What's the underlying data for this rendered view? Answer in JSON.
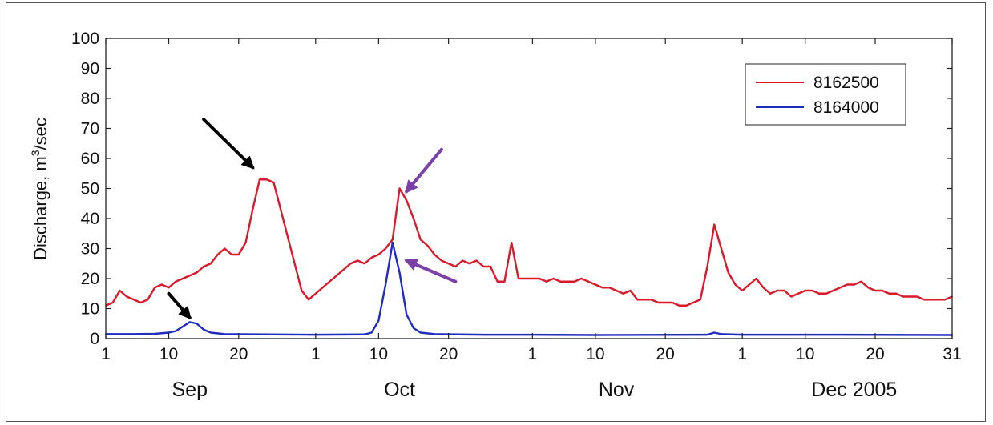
{
  "chart_data": {
    "type": "line",
    "title": "",
    "xlabel": "",
    "ylabel_parts": [
      "Discharge, m",
      "3",
      "/sec"
    ],
    "ylim": [
      0,
      100
    ],
    "yticks": [
      0,
      10,
      20,
      30,
      40,
      50,
      60,
      70,
      80,
      90,
      100
    ],
    "xlim": [
      "2005-09-01",
      "2005-12-31"
    ],
    "x_ticks": [
      {
        "date": "2005-09-01",
        "label": "1"
      },
      {
        "date": "2005-09-10",
        "label": "10"
      },
      {
        "date": "2005-09-20",
        "label": "20"
      },
      {
        "date": "2005-10-01",
        "label": "1"
      },
      {
        "date": "2005-10-10",
        "label": "10"
      },
      {
        "date": "2005-10-20",
        "label": "20"
      },
      {
        "date": "2005-11-01",
        "label": "1"
      },
      {
        "date": "2005-11-10",
        "label": "10"
      },
      {
        "date": "2005-11-20",
        "label": "20"
      },
      {
        "date": "2005-12-01",
        "label": "1"
      },
      {
        "date": "2005-12-10",
        "label": "10"
      },
      {
        "date": "2005-12-20",
        "label": "20"
      },
      {
        "date": "2005-12-31",
        "label": "31"
      }
    ],
    "month_labels": [
      {
        "date": "2005-09-13",
        "label": "Sep"
      },
      {
        "date": "2005-10-13",
        "label": "Oct"
      },
      {
        "date": "2005-11-13",
        "label": "Nov"
      },
      {
        "date": "2005-12-17",
        "label": "Dec 2005"
      }
    ],
    "legend": {
      "position": "top-right"
    },
    "grid": false,
    "series": [
      {
        "name": "8162500",
        "color": "#d91a2a",
        "points": [
          [
            "2005-09-01",
            11
          ],
          [
            "2005-09-02",
            12
          ],
          [
            "2005-09-03",
            16
          ],
          [
            "2005-09-04",
            14
          ],
          [
            "2005-09-05",
            13
          ],
          [
            "2005-09-06",
            12
          ],
          [
            "2005-09-07",
            13
          ],
          [
            "2005-09-08",
            17
          ],
          [
            "2005-09-09",
            18
          ],
          [
            "2005-09-10",
            17
          ],
          [
            "2005-09-11",
            19
          ],
          [
            "2005-09-12",
            20
          ],
          [
            "2005-09-13",
            21
          ],
          [
            "2005-09-14",
            22
          ],
          [
            "2005-09-15",
            24
          ],
          [
            "2005-09-16",
            25
          ],
          [
            "2005-09-17",
            28
          ],
          [
            "2005-09-18",
            30
          ],
          [
            "2005-09-19",
            28
          ],
          [
            "2005-09-20",
            28
          ],
          [
            "2005-09-21",
            32
          ],
          [
            "2005-09-22",
            43
          ],
          [
            "2005-09-23",
            53
          ],
          [
            "2005-09-24",
            53
          ],
          [
            "2005-09-25",
            52
          ],
          [
            "2005-09-26",
            43
          ],
          [
            "2005-09-27",
            34
          ],
          [
            "2005-09-28",
            25
          ],
          [
            "2005-09-29",
            16
          ],
          [
            "2005-09-30",
            13
          ],
          [
            "2005-10-01",
            15
          ],
          [
            "2005-10-02",
            17
          ],
          [
            "2005-10-03",
            19
          ],
          [
            "2005-10-04",
            21
          ],
          [
            "2005-10-05",
            23
          ],
          [
            "2005-10-06",
            25
          ],
          [
            "2005-10-07",
            26
          ],
          [
            "2005-10-08",
            25
          ],
          [
            "2005-10-09",
            27
          ],
          [
            "2005-10-10",
            28
          ],
          [
            "2005-10-11",
            30
          ],
          [
            "2005-10-12",
            33
          ],
          [
            "2005-10-13",
            50
          ],
          [
            "2005-10-14",
            46
          ],
          [
            "2005-10-15",
            40
          ],
          [
            "2005-10-16",
            33
          ],
          [
            "2005-10-17",
            31
          ],
          [
            "2005-10-18",
            28
          ],
          [
            "2005-10-19",
            26
          ],
          [
            "2005-10-20",
            25
          ],
          [
            "2005-10-21",
            24
          ],
          [
            "2005-10-22",
            26
          ],
          [
            "2005-10-23",
            25
          ],
          [
            "2005-10-24",
            26
          ],
          [
            "2005-10-25",
            24
          ],
          [
            "2005-10-26",
            24
          ],
          [
            "2005-10-27",
            19
          ],
          [
            "2005-10-28",
            19
          ],
          [
            "2005-10-29",
            32
          ],
          [
            "2005-10-30",
            20
          ],
          [
            "2005-10-31",
            20
          ],
          [
            "2005-11-01",
            20
          ],
          [
            "2005-11-02",
            20
          ],
          [
            "2005-11-03",
            19
          ],
          [
            "2005-11-04",
            20
          ],
          [
            "2005-11-05",
            19
          ],
          [
            "2005-11-06",
            19
          ],
          [
            "2005-11-07",
            19
          ],
          [
            "2005-11-08",
            20
          ],
          [
            "2005-11-09",
            19
          ],
          [
            "2005-11-10",
            18
          ],
          [
            "2005-11-11",
            17
          ],
          [
            "2005-11-12",
            17
          ],
          [
            "2005-11-13",
            16
          ],
          [
            "2005-11-14",
            15
          ],
          [
            "2005-11-15",
            16
          ],
          [
            "2005-11-16",
            13
          ],
          [
            "2005-11-17",
            13
          ],
          [
            "2005-11-18",
            13
          ],
          [
            "2005-11-19",
            12
          ],
          [
            "2005-11-20",
            12
          ],
          [
            "2005-11-21",
            12
          ],
          [
            "2005-11-22",
            11
          ],
          [
            "2005-11-23",
            11
          ],
          [
            "2005-11-24",
            12
          ],
          [
            "2005-11-25",
            13
          ],
          [
            "2005-11-26",
            24
          ],
          [
            "2005-11-27",
            38
          ],
          [
            "2005-11-28",
            30
          ],
          [
            "2005-11-29",
            22
          ],
          [
            "2005-11-30",
            18
          ],
          [
            "2005-12-01",
            16
          ],
          [
            "2005-12-02",
            18
          ],
          [
            "2005-12-03",
            20
          ],
          [
            "2005-12-04",
            17
          ],
          [
            "2005-12-05",
            15
          ],
          [
            "2005-12-06",
            16
          ],
          [
            "2005-12-07",
            16
          ],
          [
            "2005-12-08",
            14
          ],
          [
            "2005-12-09",
            15
          ],
          [
            "2005-12-10",
            16
          ],
          [
            "2005-12-11",
            16
          ],
          [
            "2005-12-12",
            15
          ],
          [
            "2005-12-13",
            15
          ],
          [
            "2005-12-14",
            16
          ],
          [
            "2005-12-15",
            17
          ],
          [
            "2005-12-16",
            18
          ],
          [
            "2005-12-17",
            18
          ],
          [
            "2005-12-18",
            19
          ],
          [
            "2005-12-19",
            17
          ],
          [
            "2005-12-20",
            16
          ],
          [
            "2005-12-21",
            16
          ],
          [
            "2005-12-22",
            15
          ],
          [
            "2005-12-23",
            15
          ],
          [
            "2005-12-24",
            14
          ],
          [
            "2005-12-25",
            14
          ],
          [
            "2005-12-26",
            14
          ],
          [
            "2005-12-27",
            13
          ],
          [
            "2005-12-28",
            13
          ],
          [
            "2005-12-29",
            13
          ],
          [
            "2005-12-30",
            13
          ],
          [
            "2005-12-31",
            14
          ]
        ]
      },
      {
        "name": "8164000",
        "color": "#1f2dbf",
        "points": [
          [
            "2005-09-01",
            1.5
          ],
          [
            "2005-09-05",
            1.5
          ],
          [
            "2005-09-08",
            1.6
          ],
          [
            "2005-09-10",
            2
          ],
          [
            "2005-09-11",
            2.5
          ],
          [
            "2005-09-12",
            4
          ],
          [
            "2005-09-13",
            5.5
          ],
          [
            "2005-09-14",
            5
          ],
          [
            "2005-09-15",
            3
          ],
          [
            "2005-09-16",
            2
          ],
          [
            "2005-09-18",
            1.5
          ],
          [
            "2005-10-01",
            1.3
          ],
          [
            "2005-10-08",
            1.4
          ],
          [
            "2005-10-09",
            2
          ],
          [
            "2005-10-10",
            6
          ],
          [
            "2005-10-11",
            18
          ],
          [
            "2005-10-12",
            32
          ],
          [
            "2005-10-13",
            22
          ],
          [
            "2005-10-14",
            8
          ],
          [
            "2005-10-15",
            3.5
          ],
          [
            "2005-10-16",
            2
          ],
          [
            "2005-10-18",
            1.5
          ],
          [
            "2005-10-25",
            1.3
          ],
          [
            "2005-11-01",
            1.3
          ],
          [
            "2005-11-10",
            1.2
          ],
          [
            "2005-11-26",
            1.3
          ],
          [
            "2005-11-27",
            2
          ],
          [
            "2005-11-28",
            1.5
          ],
          [
            "2005-12-01",
            1.3
          ],
          [
            "2005-12-15",
            1.3
          ],
          [
            "2005-12-31",
            1.2
          ]
        ]
      }
    ],
    "annotations": [
      {
        "type": "arrow",
        "color": "#000000",
        "x_from": "2005-09-15",
        "y_from": 73,
        "x_to": "2005-09-22",
        "y_to": 57
      },
      {
        "type": "arrow",
        "color": "#000000",
        "x_from": "2005-09-10",
        "y_from": 15,
        "x_to": "2005-09-13",
        "y_to": 7
      },
      {
        "type": "arrow",
        "color": "#7b3fa8",
        "x_from": "2005-10-19",
        "y_from": 63,
        "x_to": "2005-10-14",
        "y_to": 49
      },
      {
        "type": "arrow",
        "color": "#7b3fa8",
        "x_from": "2005-10-21",
        "y_from": 19,
        "x_to": "2005-10-14",
        "y_to": 26
      }
    ]
  }
}
